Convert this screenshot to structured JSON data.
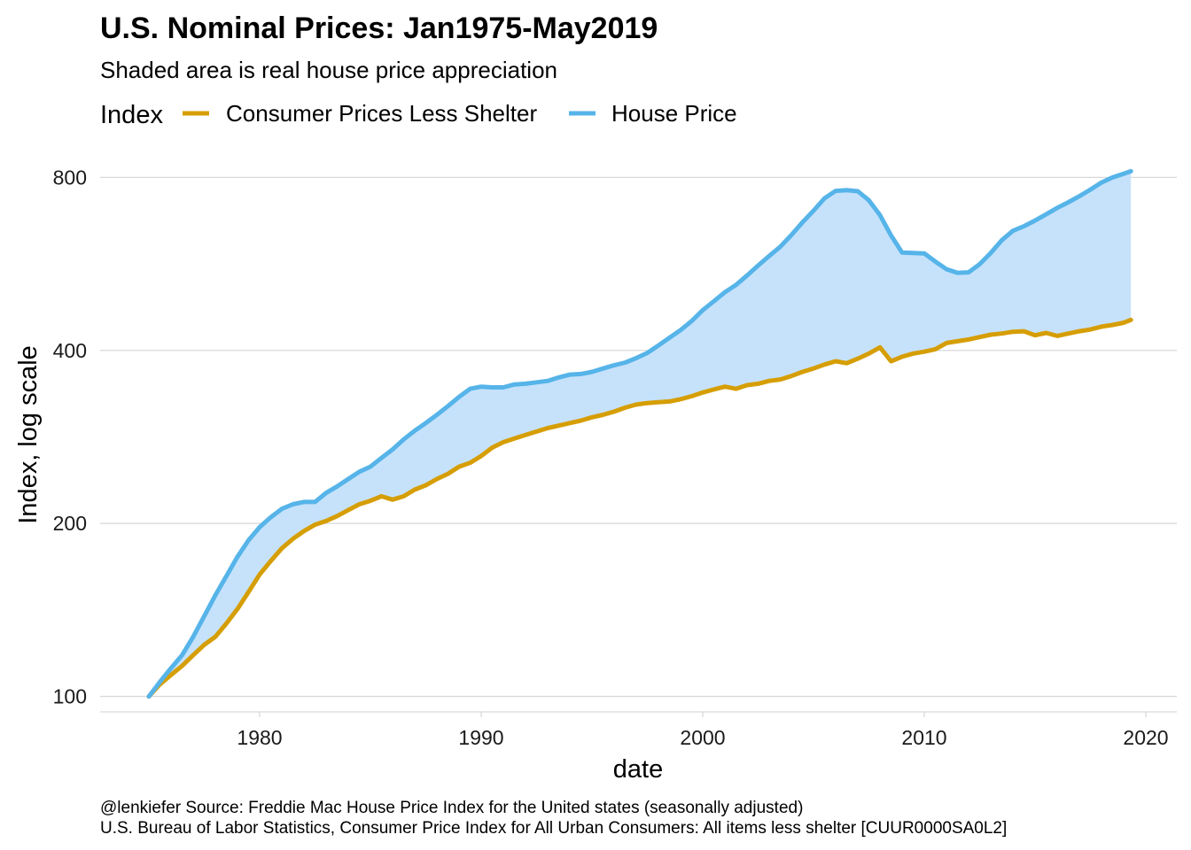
{
  "chart_data": {
    "type": "line",
    "title": "U.S. Nominal Prices: Jan1975-May2019",
    "subtitle": "Shaded area is real house price appreciation",
    "xlabel": "date",
    "ylabel": "Index, log scale",
    "y_scale": "log",
    "xlim": [
      1972.8,
      2021.4
    ],
    "ylim": [
      94,
      860
    ],
    "x_ticks": [
      1980,
      1990,
      2000,
      2010,
      2020
    ],
    "y_ticks": [
      100,
      200,
      400,
      800
    ],
    "grid": "horizontal major",
    "legend": {
      "title": "Index",
      "placement": "top"
    },
    "shaded_area": "between series",
    "series": [
      {
        "name": "Consumer Prices Less Shelter",
        "color": "#d69e05",
        "x": [
          1975.0,
          1975.5,
          1976.0,
          1976.5,
          1977.0,
          1977.5,
          1978.0,
          1978.5,
          1979.0,
          1979.5,
          1980.0,
          1980.5,
          1981.0,
          1981.5,
          1982.0,
          1982.5,
          1983.0,
          1983.5,
          1984.0,
          1984.5,
          1985.0,
          1985.5,
          1986.0,
          1986.5,
          1987.0,
          1987.5,
          1988.0,
          1988.5,
          1989.0,
          1989.5,
          1990.0,
          1990.5,
          1991.0,
          1991.5,
          1992.0,
          1992.5,
          1993.0,
          1993.5,
          1994.0,
          1994.5,
          1995.0,
          1995.5,
          1996.0,
          1996.5,
          1997.0,
          1997.5,
          1998.0,
          1998.5,
          1999.0,
          1999.5,
          2000.0,
          2000.5,
          2001.0,
          2001.5,
          2002.0,
          2002.5,
          2003.0,
          2003.5,
          2004.0,
          2004.5,
          2005.0,
          2005.5,
          2006.0,
          2006.5,
          2007.0,
          2007.5,
          2008.0,
          2008.5,
          2009.0,
          2009.5,
          2010.0,
          2010.5,
          2011.0,
          2011.5,
          2012.0,
          2012.5,
          2013.0,
          2013.5,
          2014.0,
          2014.5,
          2015.0,
          2015.5,
          2016.0,
          2016.5,
          2017.0,
          2017.5,
          2018.0,
          2018.5,
          2019.0,
          2019.33
        ],
        "values": [
          100,
          105,
          109,
          113,
          118,
          123,
          127,
          134,
          142,
          152,
          163,
          172,
          181,
          188,
          194,
          199,
          202,
          206,
          211,
          216,
          219,
          223,
          220,
          223,
          229,
          233,
          239,
          244,
          251,
          255,
          262,
          271,
          277,
          281,
          285,
          289,
          293,
          296,
          299,
          302,
          306,
          309,
          313,
          318,
          322,
          324,
          325,
          326,
          329,
          333,
          338,
          342,
          346,
          343,
          348,
          350,
          354,
          356,
          361,
          367,
          372,
          378,
          383,
          380,
          387,
          395,
          405,
          383,
          390,
          395,
          398,
          402,
          412,
          415,
          418,
          422,
          426,
          428,
          431,
          432,
          425,
          429,
          424,
          428,
          432,
          435,
          440,
          443,
          447,
          452
        ]
      },
      {
        "name": "House Price",
        "color": "#56b4e9",
        "x": [
          1975.0,
          1975.5,
          1976.0,
          1976.5,
          1977.0,
          1977.5,
          1978.0,
          1978.5,
          1979.0,
          1979.5,
          1980.0,
          1980.5,
          1981.0,
          1981.5,
          1982.0,
          1982.5,
          1983.0,
          1983.5,
          1984.0,
          1984.5,
          1985.0,
          1985.5,
          1986.0,
          1986.5,
          1987.0,
          1987.5,
          1988.0,
          1988.5,
          1989.0,
          1989.5,
          1990.0,
          1990.5,
          1991.0,
          1991.5,
          1992.0,
          1992.5,
          1993.0,
          1993.5,
          1994.0,
          1994.5,
          1995.0,
          1995.5,
          1996.0,
          1996.5,
          1997.0,
          1997.5,
          1998.0,
          1998.5,
          1999.0,
          1999.5,
          2000.0,
          2000.5,
          2001.0,
          2001.5,
          2002.0,
          2002.5,
          2003.0,
          2003.5,
          2004.0,
          2004.5,
          2005.0,
          2005.5,
          2006.0,
          2006.5,
          2007.0,
          2007.5,
          2008.0,
          2008.5,
          2009.0,
          2009.5,
          2010.0,
          2010.5,
          2011.0,
          2011.5,
          2012.0,
          2012.5,
          2013.0,
          2013.5,
          2014.0,
          2014.5,
          2015.0,
          2015.5,
          2016.0,
          2016.5,
          2017.0,
          2017.5,
          2018.0,
          2018.5,
          2019.0,
          2019.33
        ],
        "values": [
          100,
          106,
          112,
          118,
          127,
          138,
          150,
          162,
          175,
          187,
          197,
          205,
          212,
          216,
          218,
          218,
          226,
          232,
          239,
          246,
          251,
          260,
          269,
          280,
          290,
          299,
          309,
          320,
          332,
          343,
          346,
          345,
          345,
          349,
          350,
          352,
          354,
          359,
          363,
          364,
          367,
          372,
          377,
          381,
          388,
          396,
          408,
          421,
          434,
          450,
          470,
          487,
          505,
          520,
          540,
          562,
          584,
          606,
          635,
          668,
          700,
          736,
          758,
          760,
          757,
          730,
          688,
          634,
          592,
          591,
          590,
          571,
          554,
          546,
          547,
          565,
          591,
          622,
          646,
          658,
          673,
          690,
          708,
          724,
          742,
          762,
          784,
          800,
          812,
          820
        ]
      }
    ]
  },
  "caption": {
    "line1": "@lenkiefer Source: Freddie Mac House Price Index for the United states (seasonally adjusted)",
    "line2": "U.S. Bureau of Labor Statistics, Consumer Price Index for All Urban Consumers: All items less shelter [CUUR0000SA0L2]"
  },
  "colors": {
    "shade": "#c6e2fb",
    "grid": "#d9d9d9"
  }
}
